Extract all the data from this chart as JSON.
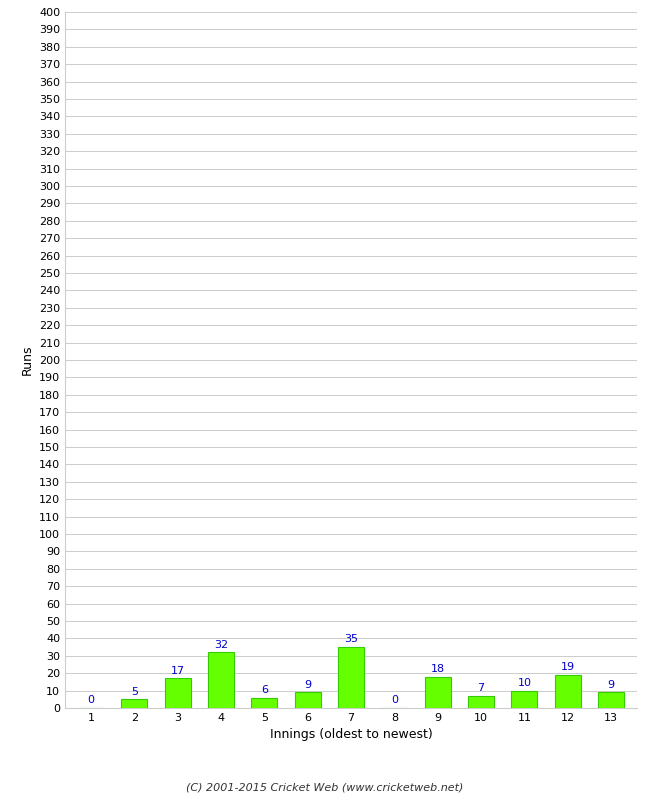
{
  "categories": [
    1,
    2,
    3,
    4,
    5,
    6,
    7,
    8,
    9,
    10,
    11,
    12,
    13
  ],
  "values": [
    0,
    5,
    17,
    32,
    6,
    9,
    35,
    0,
    18,
    7,
    10,
    19,
    9
  ],
  "bar_color": "#66ff00",
  "bar_edge_color": "#33cc00",
  "label_color": "#0000cc",
  "ylabel": "Runs",
  "xlabel": "Innings (oldest to newest)",
  "ylim_max": 400,
  "background_color": "#ffffff",
  "grid_color": "#cccccc",
  "footer": "(C) 2001-2015 Cricket Web (www.cricketweb.net)",
  "footer_color": "#333333",
  "bar_width": 0.6,
  "label_fontsize": 8,
  "tick_fontsize": 8,
  "axis_label_fontsize": 9,
  "footer_fontsize": 8
}
